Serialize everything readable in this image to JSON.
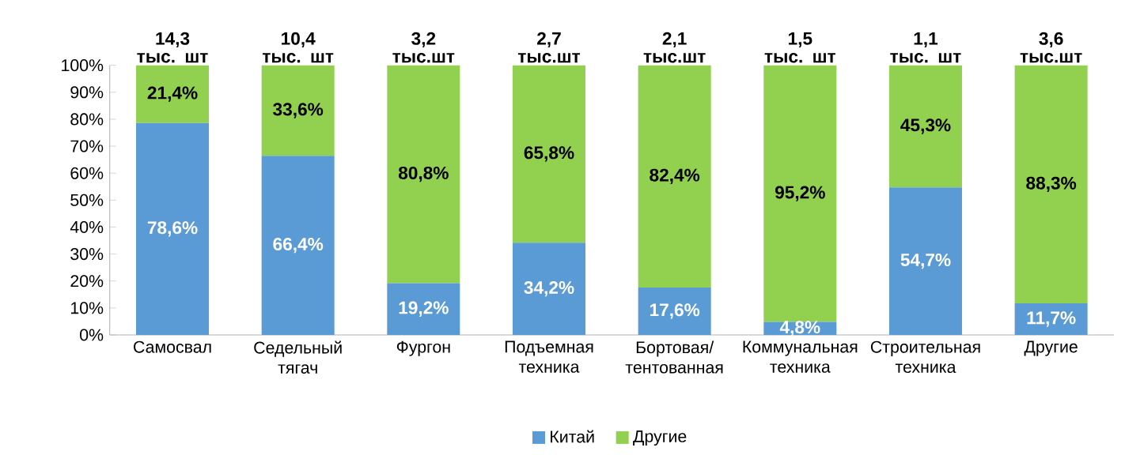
{
  "chart_data": {
    "type": "bar",
    "stacked": true,
    "categories": [
      "Самосвал",
      "Седельный тягач",
      "Фургон",
      "Подъемная техника",
      "Бортовая/тентованная",
      "Коммунальная техника",
      "Строительная техника",
      "Другие"
    ],
    "series": [
      {
        "name": "Китай",
        "color": "#5b9bd5",
        "values": [
          78.6,
          66.4,
          19.2,
          34.2,
          17.6,
          4.8,
          54.7,
          11.7
        ],
        "value_labels": [
          "78,6%",
          "66,4%",
          "19,2%",
          "34,2%",
          "17,6%",
          "4,8%",
          "54,7%",
          "11,7%"
        ]
      },
      {
        "name": "Другие",
        "color": "#92d050",
        "values": [
          21.4,
          33.6,
          80.8,
          65.8,
          82.4,
          95.2,
          45.3,
          88.3
        ],
        "value_labels": [
          "21,4%",
          "33,6%",
          "80,8%",
          "65,8%",
          "82,4%",
          "95,2%",
          "45,3%",
          "88,3%"
        ]
      }
    ],
    "annotations": [
      "14,3 тыс. шт",
      "10,4 тыс. шт",
      "3,2 тыс.шт",
      "2,7 тыс.шт",
      "2,1 тыс.шт",
      "1,5 тыс. шт",
      "1,1 тыс. шт",
      "3,6 тыс.шт"
    ],
    "ylim": [
      0,
      100
    ],
    "yticks": [
      {
        "value": 0,
        "label": "0%"
      },
      {
        "value": 10,
        "label": "10%"
      },
      {
        "value": 20,
        "label": "20%"
      },
      {
        "value": 30,
        "label": "30%"
      },
      {
        "value": 40,
        "label": "40%"
      },
      {
        "value": 50,
        "label": "50%"
      },
      {
        "value": 60,
        "label": "60%"
      },
      {
        "value": 70,
        "label": "70%"
      },
      {
        "value": 80,
        "label": "80%"
      },
      {
        "value": 90,
        "label": "90%"
      },
      {
        "value": 100,
        "label": "100%"
      }
    ],
    "legend": "bottom"
  }
}
